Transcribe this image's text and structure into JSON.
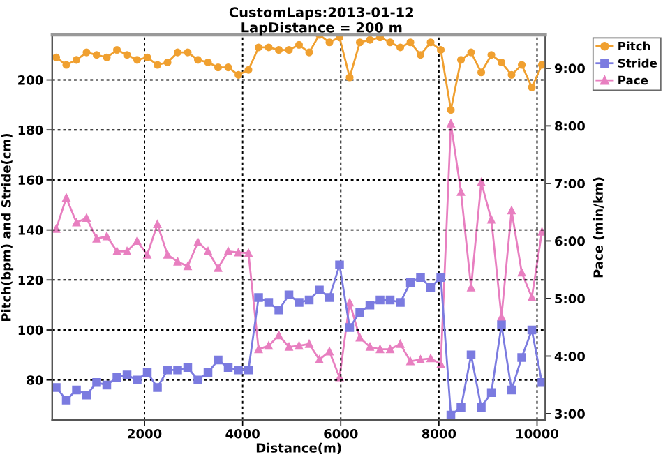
{
  "chart_data": {
    "type": "line",
    "title": "CustomLaps:2013-01-12",
    "subtitle": "LapDistance = 200 m",
    "xlabel": "Distance(m)",
    "ylabel": "Pitch(bpm) and Stride(cm)",
    "y2label": "Pace (min/km)",
    "x": [
      200,
      406,
      613,
      819,
      1025,
      1231,
      1438,
      1644,
      1850,
      2056,
      2263,
      2469,
      2675,
      2881,
      3088,
      3294,
      3500,
      3706,
      3913,
      4119,
      4325,
      4531,
      4738,
      4944,
      5150,
      5356,
      5563,
      5769,
      5975,
      6181,
      6388,
      6594,
      6800,
      7006,
      7213,
      7419,
      7625,
      7831,
      8038,
      8244,
      8450,
      8656,
      8863,
      9069,
      9275,
      9481,
      9688,
      9894,
      10100
    ],
    "series": [
      {
        "name": "Pitch",
        "color": "#f0a030",
        "marker": "circle",
        "values": [
          209,
          206,
          208,
          211,
          210,
          209,
          212,
          210,
          208,
          209,
          206,
          207,
          211,
          211,
          208,
          207,
          205,
          205,
          202,
          204,
          213,
          213,
          212,
          212,
          214,
          211,
          218,
          215,
          217,
          201,
          215,
          216,
          217,
          215,
          213,
          215,
          210,
          215,
          212,
          188,
          208,
          211,
          203,
          210,
          207,
          202,
          206,
          197,
          206
        ]
      },
      {
        "name": "Stride",
        "color": "#7b7be0",
        "marker": "square",
        "values": [
          77,
          72,
          76,
          74,
          79,
          78,
          81,
          82,
          80,
          83,
          77,
          84,
          84,
          85,
          80,
          83,
          88,
          85,
          84,
          84,
          113,
          111,
          108,
          114,
          111,
          112,
          116,
          113,
          126,
          101,
          107,
          110,
          112,
          112,
          111,
          119,
          121,
          117,
          121,
          66,
          69,
          90,
          69,
          75,
          102,
          76,
          89,
          100,
          79
        ]
      },
      {
        "name": "Pace",
        "color": "#e87fc0",
        "marker": "triangle",
        "axis": "y2",
        "values": [
          6.21,
          6.75,
          6.32,
          6.4,
          6.04,
          6.08,
          5.82,
          5.82,
          6.0,
          5.76,
          6.29,
          5.76,
          5.64,
          5.56,
          5.98,
          5.82,
          5.53,
          5.82,
          5.8,
          5.79,
          4.12,
          4.18,
          4.36,
          4.16,
          4.18,
          4.21,
          3.94,
          4.08,
          3.63,
          4.93,
          4.32,
          4.16,
          4.12,
          4.12,
          4.21,
          3.91,
          3.94,
          3.96,
          3.86,
          8.04,
          6.85,
          5.19,
          7.02,
          6.37,
          4.68,
          6.53,
          5.45,
          5.02,
          6.16
        ]
      }
    ],
    "xlim": [
      120,
      10170
    ],
    "xticks": [
      2000,
      4000,
      6000,
      8000,
      10000
    ],
    "ylim": [
      64,
      218
    ],
    "yticks": [
      80,
      100,
      120,
      140,
      160,
      180,
      200
    ],
    "y2lim": [
      2.89,
      9.58
    ],
    "y2ticks": [
      {
        "value": 3,
        "label": "3:00"
      },
      {
        "value": 4,
        "label": "4:00"
      },
      {
        "value": 5,
        "label": "5:00"
      },
      {
        "value": 6,
        "label": "6:00"
      },
      {
        "value": 7,
        "label": "7:00"
      },
      {
        "value": 8,
        "label": "8:00"
      },
      {
        "value": 9,
        "label": "9:00"
      }
    ],
    "grid": true,
    "legend": "top right",
    "line_style": "solid"
  }
}
